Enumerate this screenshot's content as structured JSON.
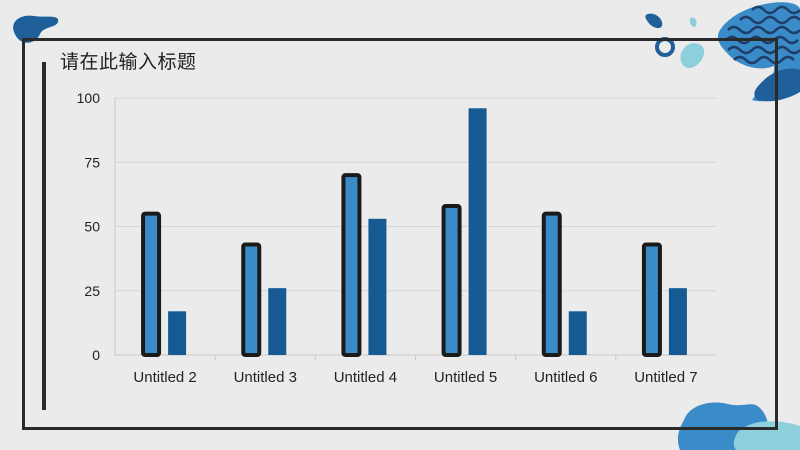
{
  "slide": {
    "title": "请在此输入标题"
  },
  "colors": {
    "series1_fill": "#3a8cc8",
    "series1_stroke": "#1a1a1a",
    "series2_fill": "#155a93",
    "accent_light": "#8ecfdc",
    "accent_dark": "#1f5f9a",
    "gridline": "#d5d5d5",
    "frame": "#2a2a2a"
  },
  "chart_data": {
    "type": "bar",
    "categories": [
      "Untitled 2",
      "Untitled 3",
      "Untitled 4",
      "Untitled 5",
      "Untitled 6",
      "Untitled 7"
    ],
    "series": [
      {
        "values": [
          55,
          43,
          70,
          58,
          55,
          43
        ]
      },
      {
        "values": [
          17,
          26,
          53,
          96,
          17,
          26
        ]
      }
    ],
    "yticks": [
      "0",
      "25",
      "50",
      "75",
      "100"
    ],
    "ylim": [
      0,
      100
    ],
    "grid": true,
    "title": "",
    "xlabel": "",
    "ylabel": ""
  }
}
